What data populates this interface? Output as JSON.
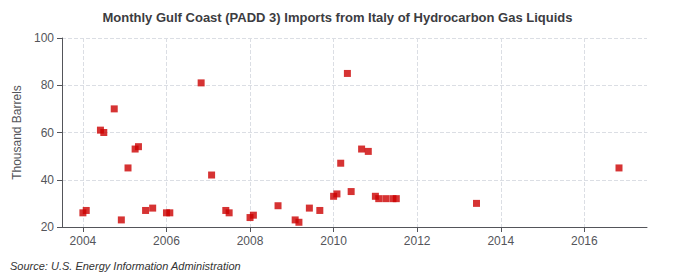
{
  "chart_data": {
    "type": "scatter",
    "title": "Monthly Gulf Coast (PADD 3) Imports from Italy of Hydrocarbon Gas Liquids",
    "ylabel": "Thousand Barrels",
    "annotations": [
      "Source: U.S. Energy Information Administration"
    ],
    "color": "#cc0000",
    "marker": "square",
    "grid": true,
    "xlim": [
      2003.5,
      2017.5
    ],
    "ylim": [
      20,
      100
    ],
    "xticks": [
      2004,
      2006,
      2008,
      2010,
      2012,
      2014,
      2016
    ],
    "yticks": [
      20,
      40,
      60,
      80,
      100
    ],
    "x": [
      2004.0,
      2004.08,
      2004.42,
      2004.5,
      2004.75,
      2004.92,
      2005.08,
      2005.25,
      2005.33,
      2005.5,
      2005.67,
      2006.0,
      2006.08,
      2006.83,
      2007.08,
      2007.42,
      2007.5,
      2008.0,
      2008.08,
      2008.67,
      2009.08,
      2009.17,
      2009.42,
      2009.67,
      2010.0,
      2010.08,
      2010.17,
      2010.33,
      2010.42,
      2010.67,
      2010.83,
      2011.0,
      2011.08,
      2011.25,
      2011.42,
      2011.5,
      2013.42,
      2016.83
    ],
    "values": [
      26,
      27,
      61,
      60,
      70,
      23,
      45,
      53,
      54,
      27,
      28,
      26,
      26,
      81,
      42,
      27,
      26,
      24,
      25,
      29,
      23,
      22,
      28,
      27,
      33,
      34,
      47,
      85,
      35,
      53,
      52,
      33,
      32,
      32,
      32,
      32,
      30,
      45
    ]
  }
}
